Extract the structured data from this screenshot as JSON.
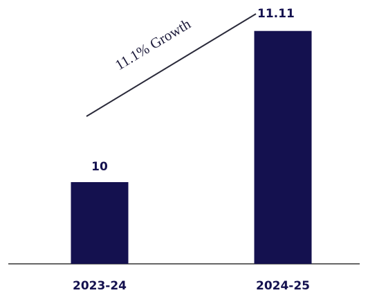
{
  "chart_data": {
    "type": "bar",
    "categories": [
      "2023-24",
      "2024-25"
    ],
    "values": [
      10,
      11.11
    ],
    "color": "#14114f",
    "ylim": [
      9.4,
      11.2
    ],
    "annotation": "11.1% Growth"
  }
}
